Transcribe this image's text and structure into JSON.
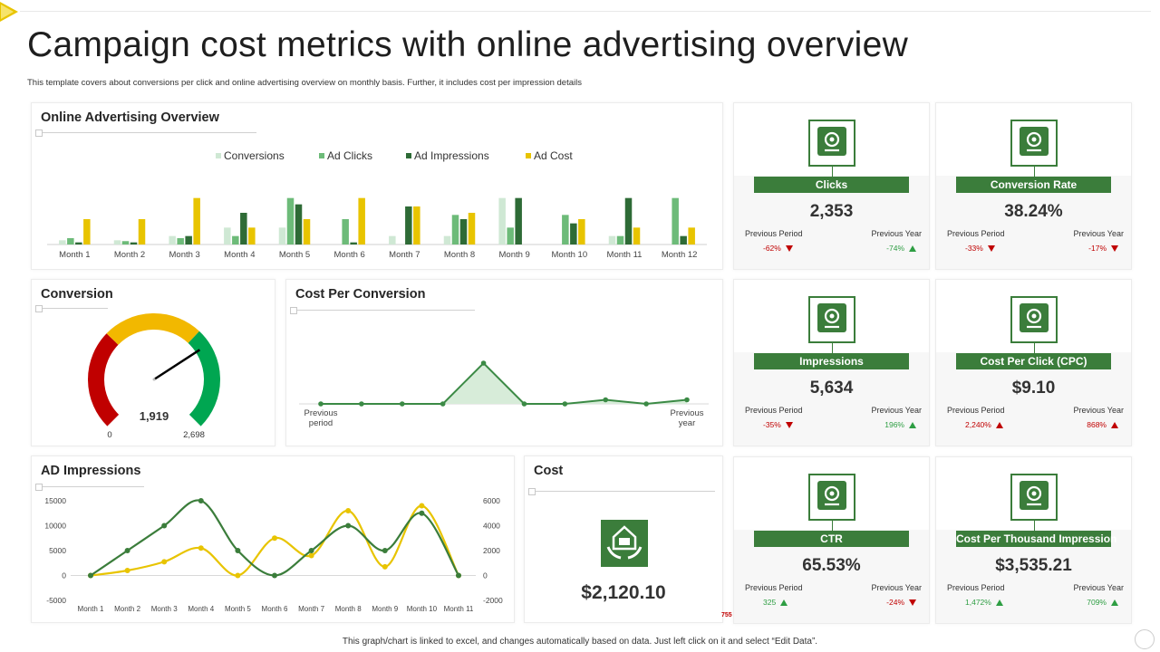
{
  "page": {
    "title": "Campaign cost metrics with online advertising overview",
    "subtitle": "This template covers about conversions per click and online advertising overview on monthly basis. Further, it includes cost per impression details",
    "footer": "This graph/chart is linked to excel, and changes automatically based on data. Just left click on it and select “Edit Data”.",
    "stub": "755"
  },
  "colors": {
    "accent_green": "#3b7d3b",
    "conversions": "#cfe8d4",
    "ad_clicks": "#6dbb79",
    "ad_impressions": "#2e6b36",
    "ad_cost": "#e8c400",
    "down_red": "#c00000",
    "up_green": "#2e9e43"
  },
  "panels": {
    "overview_title": "Online Advertising Overview",
    "conversion_title": "Conversion",
    "cpc_title": "Cost Per Conversion",
    "impressions_title": "AD Impressions",
    "cost_title": "Cost"
  },
  "chart_data": [
    {
      "type": "bar",
      "title": "Online Advertising Overview",
      "categories": [
        "Month 1",
        "Month 2",
        "Month 3",
        "Month 4",
        "Month 5",
        "Month 6",
        "Month 7",
        "Month 8",
        "Month 9",
        "Month 10",
        "Month 11",
        "Month 12"
      ],
      "series": [
        {
          "name": "Conversions",
          "values": [
            1,
            1,
            2,
            4,
            4,
            0,
            2,
            2,
            11,
            0,
            2,
            0
          ]
        },
        {
          "name": "Ad Clicks",
          "values": [
            1.5,
            0.8,
            1.5,
            2,
            11,
            6,
            0,
            7,
            4,
            7,
            2,
            11
          ]
        },
        {
          "name": "Ad Impressions",
          "values": [
            0.5,
            0.5,
            2,
            7.5,
            9.5,
            0.5,
            9,
            6,
            11,
            5,
            11,
            2
          ]
        },
        {
          "name": "Ad Cost",
          "values": [
            6,
            6,
            11,
            4,
            6,
            11,
            9,
            7.5,
            0,
            6,
            4,
            4
          ]
        }
      ],
      "ylim": [
        0,
        12
      ],
      "legend": "top"
    },
    {
      "type": "gauge",
      "title": "Conversion",
      "value": 1919,
      "min": 0,
      "max": 2698,
      "value_label": "1,919",
      "min_label": "0",
      "max_label": "2,698",
      "bands": [
        {
          "to": 0.33,
          "color": "#c00000"
        },
        {
          "to": 0.66,
          "color": "#f2b800"
        },
        {
          "to": 1.0,
          "color": "#00a651"
        }
      ]
    },
    {
      "type": "area",
      "title": "Cost Per Conversion",
      "x_start_label": "Previous period",
      "x_end_label": "Previous year",
      "values": [
        0,
        0,
        0,
        0,
        10,
        0,
        0,
        1,
        0,
        1
      ],
      "ylim": [
        0,
        12
      ]
    },
    {
      "type": "line",
      "title": "AD Impressions",
      "categories": [
        "Month 1",
        "Month 2",
        "Month 3",
        "Month 4",
        "Month 5",
        "Month 6",
        "Month 7",
        "Month 8",
        "Month 9",
        "Month 10",
        "Month 11"
      ],
      "series": [
        {
          "axis": "left",
          "color": "#3b7d3b",
          "values": [
            0,
            5000,
            10000,
            15000,
            5000,
            0,
            5000,
            10000,
            5000,
            12500,
            0
          ]
        },
        {
          "axis": "right",
          "color": "#e8c400",
          "values": [
            0,
            400,
            1100,
            2200,
            0,
            3000,
            1600,
            5200,
            700,
            5600,
            0
          ]
        }
      ],
      "left_ticks": [
        "15000",
        "10000",
        "5000",
        "0",
        "-5000"
      ],
      "right_ticks": [
        "6000",
        "4000",
        "2000",
        "0",
        "-2000"
      ],
      "ylim_left": [
        -5000,
        15000
      ],
      "ylim_right": [
        -2000,
        6000
      ]
    }
  ],
  "cost": {
    "value": "$2,120.10",
    "icon": "money-hands-icon"
  },
  "kpis": [
    {
      "id": "clicks",
      "icon": "cursor-click-icon",
      "label": "Clicks",
      "value": "2,353",
      "prev_period_label": "Previous Period",
      "prev_year_label": "Previous Year",
      "prev_period": "-62%",
      "prev_period_dir": "down",
      "prev_year": "-74%",
      "prev_year_dir": "up-green"
    },
    {
      "id": "conversion-rate",
      "icon": "chart-monitor-icon",
      "label": "Conversion Rate",
      "value": "38.24%",
      "prev_period_label": "Previous Period",
      "prev_year_label": "Previous Year",
      "prev_period": "-33%",
      "prev_period_dir": "down",
      "prev_year": "-17%",
      "prev_year_dir": "down"
    },
    {
      "id": "impressions",
      "icon": "hand-eye-icon",
      "label": "Impressions",
      "value": "5,634",
      "prev_period_label": "Previous Period",
      "prev_year_label": "Previous Year",
      "prev_period": "-35%",
      "prev_period_dir": "down",
      "prev_year": "196%",
      "prev_year_dir": "up-green"
    },
    {
      "id": "cpc",
      "icon": "click-screen-icon",
      "label": "Cost Per Click (CPC)",
      "value": "$9.10",
      "prev_period_label": "Previous Period",
      "prev_year_label": "Previous Year",
      "prev_period": "2,240%",
      "prev_period_dir": "up-red",
      "prev_year": "868%",
      "prev_year_dir": "up-red"
    },
    {
      "id": "ctr",
      "icon": "globe-hands-icon",
      "label": "CTR",
      "value": "65.53%",
      "prev_period_label": "Previous Period",
      "prev_year_label": "Previous Year",
      "prev_period": "325",
      "prev_period_dir": "up-green",
      "prev_year": "-24%",
      "prev_year_dir": "down"
    },
    {
      "id": "cpm",
      "icon": "cash-eye-icon",
      "label": "Cost Per Thousand Impression",
      "value": "$3,535.21",
      "prev_period_label": "Previous Period",
      "prev_year_label": "Previous Year",
      "prev_period": "1,472%",
      "prev_period_dir": "up-green",
      "prev_year": "709%",
      "prev_year_dir": "up-green"
    }
  ]
}
